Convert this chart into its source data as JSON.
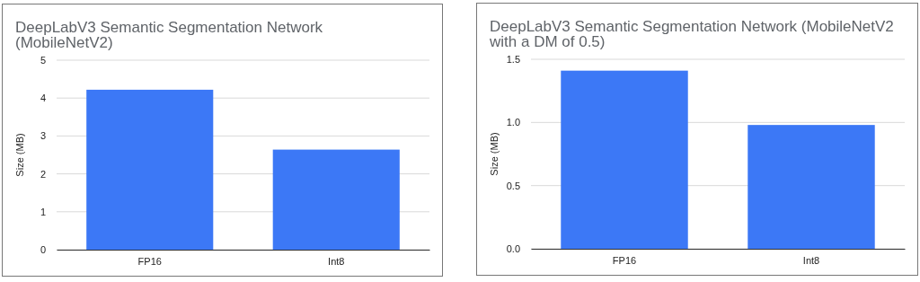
{
  "chart_data": [
    {
      "type": "bar",
      "title": "DeepLabV3 Semantic Segmentation Network (MobileNetV2)",
      "ylabel": "Size (MB)",
      "categories": [
        "FP16",
        "Int8"
      ],
      "values": [
        4.22,
        2.64
      ],
      "color": "#3c78f6",
      "ylim": [
        0,
        5
      ],
      "yticks": [
        0,
        1,
        2,
        3,
        4,
        5
      ],
      "grid": "y"
    },
    {
      "type": "bar",
      "title": "DeepLabV3 Semantic Segmentation Network (MobileNetV2 with a DM of 0.5)",
      "ylabel": "Size (MB)",
      "categories": [
        "FP16",
        "Int8"
      ],
      "values": [
        1.41,
        0.98
      ],
      "color": "#3c78f6",
      "ylim": [
        0,
        1.5
      ],
      "yticks": [
        {
          "value": 0,
          "label": "0.0"
        },
        {
          "value": 0.5,
          "label": "0.5"
        },
        {
          "value": 1,
          "label": "1.0"
        },
        {
          "value": 1.5,
          "label": "1.5"
        }
      ],
      "grid": "y"
    }
  ]
}
